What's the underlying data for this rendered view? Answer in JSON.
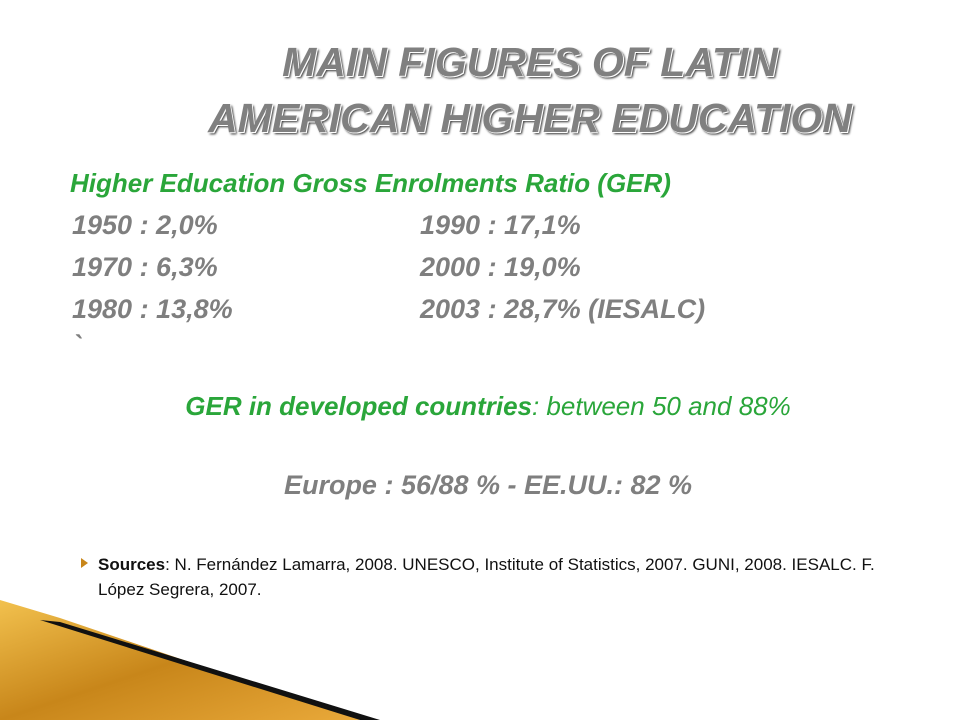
{
  "header": {
    "title_lines": [
      "MAIN FIGURES OF LATIN",
      "AMERICAN HIGHER EDUCATION"
    ]
  },
  "ger": {
    "heading": "Higher Education Gross Enrolments Ratio (GER)",
    "rows": [
      [
        "1950 : 2,0%",
        "1990 : 17,1%"
      ],
      [
        "1970 : 6,3%",
        "2000 : 19,0%"
      ],
      [
        "1980 : 13,8%",
        "2003 : 28,7% (IESALC)"
      ]
    ],
    "stray_mark": "`"
  },
  "developed": {
    "label": "GER in developed countries",
    "text": ": between 50 and 88%",
    "detail": "Europe : 56/88 % - EE.UU.: 82 %"
  },
  "sources": {
    "label": "Sources",
    "text": ": N. Fernández Lamarra, 2008. UNESCO, Institute of Statistics, 2007. GUNI, 2008. IESALC. F. López Segrera, 2007."
  }
}
